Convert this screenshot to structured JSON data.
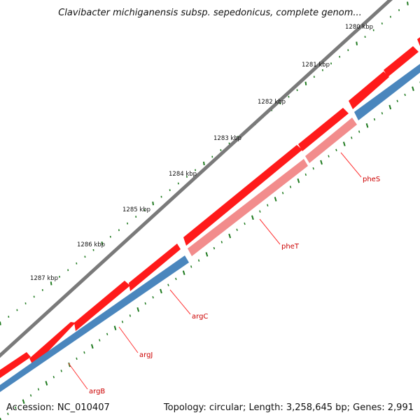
{
  "map": {
    "title": "Clavibacter michiganensis subsp. sepedonicus, complete genom...",
    "accession": "Accession: NC_010407",
    "summary": "Topology: circular; Length: 3,258,645 bp; Genes: 2,991",
    "colors": {
      "backbone": "#7a7a7a",
      "forward_cds": "#ff1a1a",
      "reverse_cds": "#4a86bd",
      "trna": "#f28c8c",
      "ticks": "#1f7a1f",
      "label": "#cc0000"
    },
    "kbp_marks": [
      {
        "text": "1280 kbp"
      },
      {
        "text": "1281 kbp"
      },
      {
        "text": "1282 kbp"
      },
      {
        "text": "1283 kbp"
      },
      {
        "text": "1284 kbp"
      },
      {
        "text": "1285 kbp"
      },
      {
        "text": "1286 kbp"
      },
      {
        "text": "1287 kbp"
      }
    ],
    "gene_labels": [
      {
        "name": "pheS"
      },
      {
        "name": "pheT"
      },
      {
        "name": "argC"
      },
      {
        "name": "argJ"
      },
      {
        "name": "argB"
      }
    ]
  }
}
